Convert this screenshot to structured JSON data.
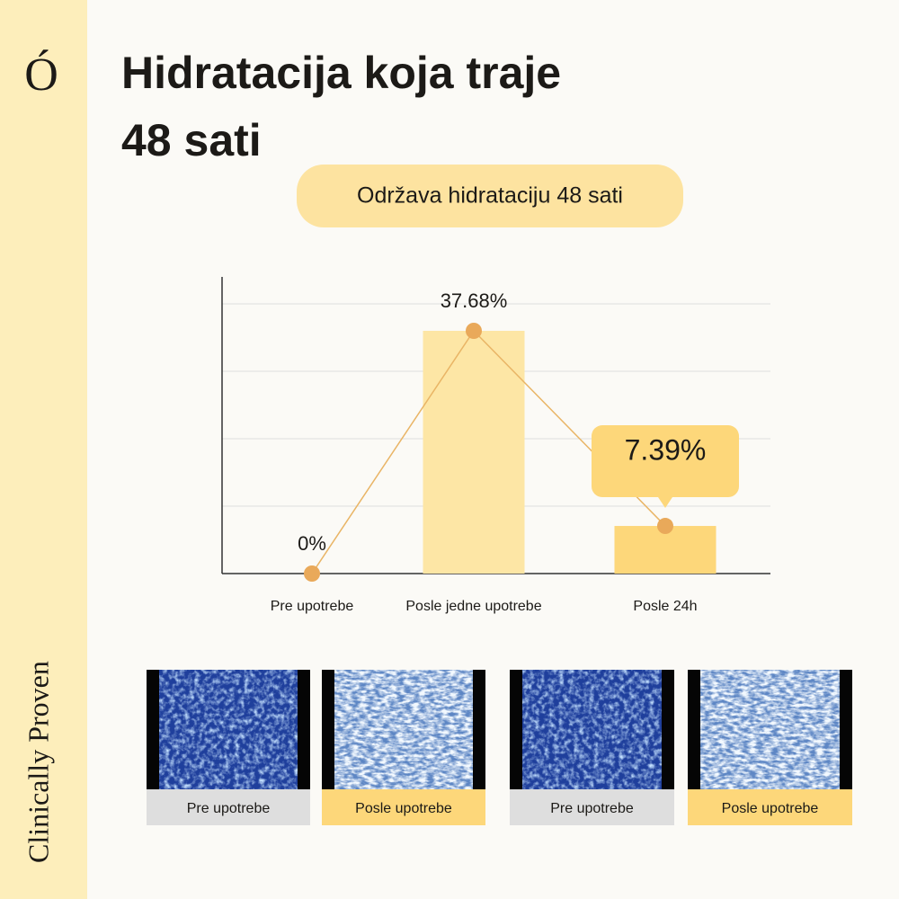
{
  "logo": "Ó",
  "side_text": "Clinically Proven",
  "title": [
    "Hidratacija koja traje",
    "48 sati"
  ],
  "badge": "Održava hidrataciju 48 sati",
  "chart_data": {
    "type": "bar",
    "categories": [
      "Pre upotrebe",
      "Posle jedne upotrebe",
      "Posle 24h"
    ],
    "values": [
      0,
      37.68,
      7.39
    ],
    "value_labels": [
      "0%",
      "37.68%",
      "7.39%"
    ],
    "colors": [
      "#fdf0c8",
      "#fde6a5",
      "#fdd77a"
    ],
    "line_color": "#e9b566",
    "grid": true
  },
  "images": [
    {
      "caption": "Pre upotrebe"
    },
    {
      "caption": "Posle upotrebe"
    },
    {
      "caption": "Pre upotrebe"
    },
    {
      "caption": "Posle upotrebe"
    }
  ]
}
